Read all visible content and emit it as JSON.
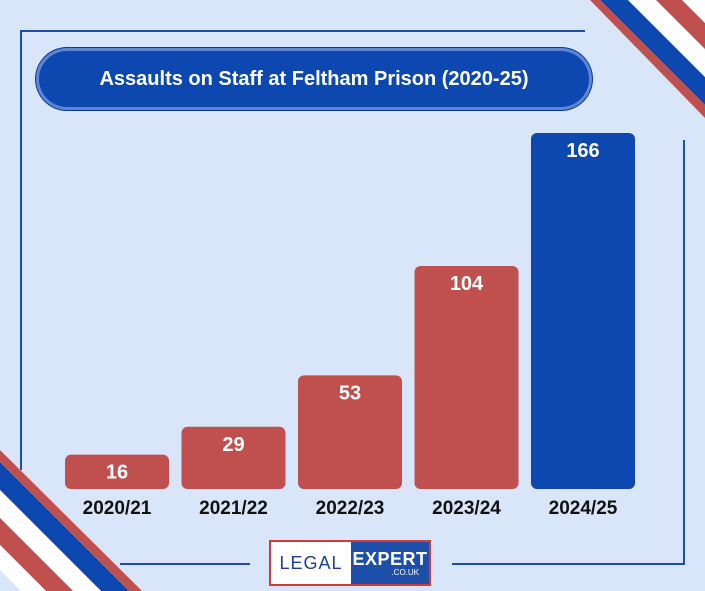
{
  "title": "Assaults on Staff at Feltham Prison (2020-25)",
  "colors": {
    "background": "#d9e6fa",
    "bar_red": "#c0504d",
    "bar_blue": "#0d47b0",
    "title_pill": "#0d47b0"
  },
  "chart_data": {
    "type": "bar",
    "title": "Assaults on Staff at Feltham Prison (2020-25)",
    "categories": [
      "2020/21",
      "2021/22",
      "2022/23",
      "2023/24",
      "2024/25"
    ],
    "values": [
      16,
      29,
      53,
      104,
      166
    ],
    "bar_colors": [
      "#c0504d",
      "#c0504d",
      "#c0504d",
      "#c0504d",
      "#0d47b0"
    ],
    "data_labels": [
      "16",
      "29",
      "53",
      "104",
      "166"
    ],
    "xlabel": "",
    "ylabel": "",
    "ylim": [
      0,
      166
    ],
    "grid": false,
    "legend": "none"
  },
  "logo": {
    "left_text": "LEGAL",
    "right_text": "EXPERT",
    "domain_text": ".CO.UK"
  }
}
